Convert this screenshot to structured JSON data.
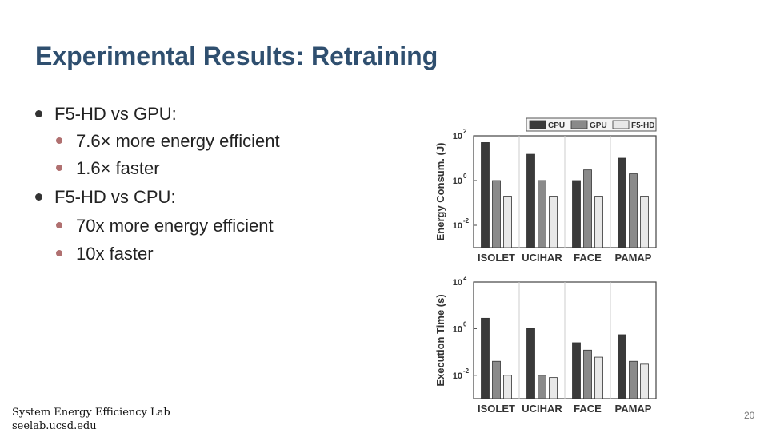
{
  "slide": {
    "title": "Experimental Results: Retraining",
    "bullets": [
      {
        "text": "F5-HD vs GPU:",
        "sub": [
          "7.6× more energy efficient",
          "1.6× faster"
        ]
      },
      {
        "text": "F5-HD vs CPU:",
        "sub": [
          "70x more energy efficient",
          "10x faster"
        ]
      }
    ],
    "footer": {
      "line1": "System Energy Efficiency Lab",
      "line2": "seelab.ucsd.edu"
    },
    "page_number": "20"
  },
  "colors": {
    "CPU": "#3a3a3a",
    "GPU": "#8a8a8a",
    "F5-HD": "#e8e8e8",
    "title": "#2f4f6f"
  },
  "chart_data": [
    {
      "type": "bar",
      "log_scale": true,
      "ylabel": "Energy Consum. (J)",
      "ylim_exp": [
        -3,
        2
      ],
      "ytick_exps": [
        "2",
        "0",
        "-2"
      ],
      "categories": [
        "ISOLET",
        "UCIHAR",
        "FACE",
        "PAMAP"
      ],
      "legend": [
        "CPU",
        "GPU",
        "F5-HD"
      ],
      "legend_position": "top-right",
      "series": [
        {
          "name": "CPU",
          "values": [
            50,
            15,
            1.0,
            10
          ]
        },
        {
          "name": "GPU",
          "values": [
            1.0,
            1.0,
            3.0,
            2.0
          ]
        },
        {
          "name": "F5-HD",
          "values": [
            0.2,
            0.2,
            0.2,
            0.2
          ]
        }
      ]
    },
    {
      "type": "bar",
      "log_scale": true,
      "ylabel": "Execution Time (s)",
      "ylim_exp": [
        -3,
        2
      ],
      "ytick_exps": [
        "2",
        "0",
        "-2"
      ],
      "categories": [
        "ISOLET",
        "UCIHAR",
        "FACE",
        "PAMAP"
      ],
      "series": [
        {
          "name": "CPU",
          "values": [
            2.8,
            1.0,
            0.25,
            0.55
          ]
        },
        {
          "name": "GPU",
          "values": [
            0.04,
            0.01,
            0.12,
            0.04
          ]
        },
        {
          "name": "F5-HD",
          "values": [
            0.01,
            0.008,
            0.06,
            0.03
          ]
        }
      ]
    }
  ]
}
